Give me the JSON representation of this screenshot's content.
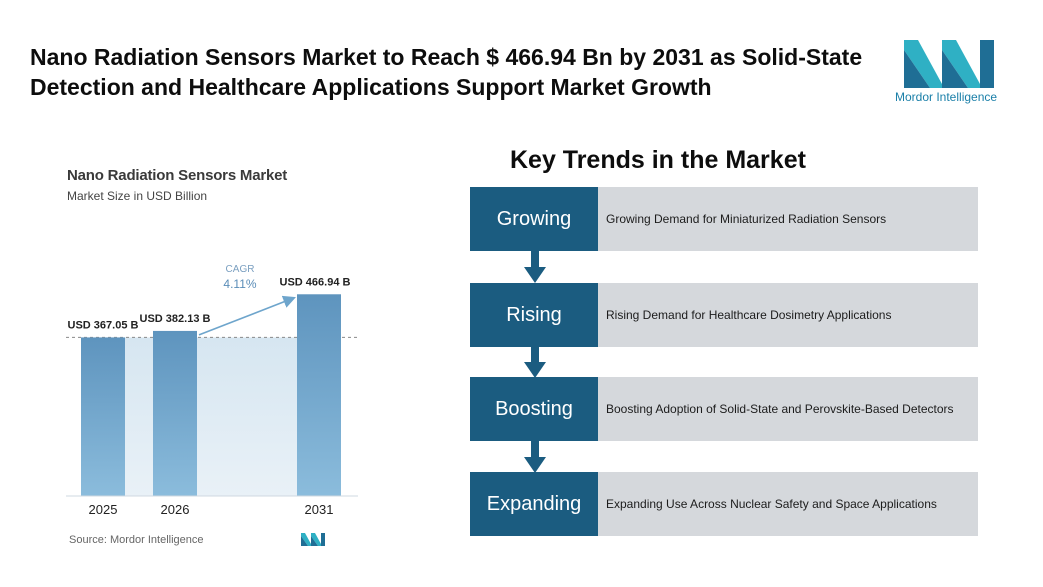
{
  "headline": "Nano Radiation Sensors Market to Reach $ 466.94 Bn by 2031 as Solid-State Detection and Healthcare Applications Support Market Growth",
  "brand": {
    "name": "Mordor Intelligence",
    "colors": {
      "teal": "#2fb0c4",
      "blue": "#1f6e95"
    }
  },
  "chart_data": {
    "type": "bar",
    "title": "Nano Radiation Sensors Market",
    "subtitle": "Market Size in USD Billion",
    "categories": [
      "2025",
      "2026",
      "2031"
    ],
    "values": [
      367.05,
      382.13,
      466.94
    ],
    "data_labels": [
      "USD 367.05 B",
      "USD 382.13 B",
      "USD 466.94 B"
    ],
    "cagr_label": "CAGR",
    "cagr_value": "4.11%",
    "source": "Source: Mordor Intelligence",
    "bar_color": "#5e94be",
    "bar_color_light": "#8bbcdc",
    "grid": false
  },
  "trends": {
    "title": "Key Trends in the Market",
    "items": [
      {
        "label": "Growing",
        "description": "Growing Demand for Miniaturized Radiation Sensors"
      },
      {
        "label": "Rising",
        "description": "Rising Demand for Healthcare Dosimetry Applications"
      },
      {
        "label": "Boosting",
        "description": "Boosting Adoption of Solid-State and Perovskite-Based Detectors"
      },
      {
        "label": "Expanding",
        "description": "Expanding Use Across Nuclear Safety and Space Applications"
      }
    ],
    "label_color": "#1b5c80",
    "desc_color": "#d5d8dc"
  }
}
